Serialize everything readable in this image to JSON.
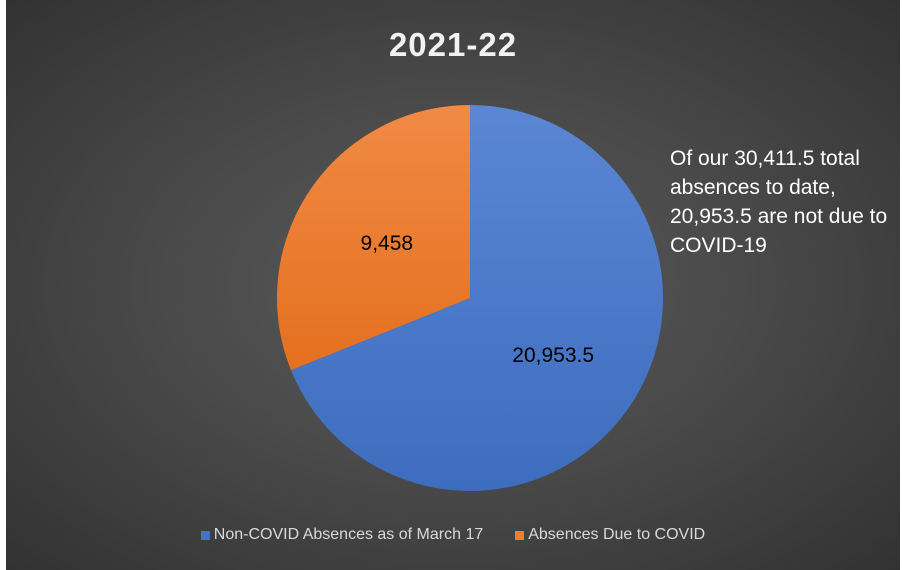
{
  "chart_data": {
    "type": "pie",
    "title": "2021-22",
    "slices": [
      {
        "label": "Non-COVID Absences as of March 17",
        "value": 20953.5,
        "display": "20,953.5",
        "color": "#4472c4"
      },
      {
        "label": "Absences Due to COVID",
        "value": 9458,
        "display": "9,458",
        "color": "#ed7d31"
      }
    ],
    "annotation": "Of our 30,411.5 total absences to date, 20,953.5 are not due to COVID-19",
    "legend_position": "bottom"
  }
}
